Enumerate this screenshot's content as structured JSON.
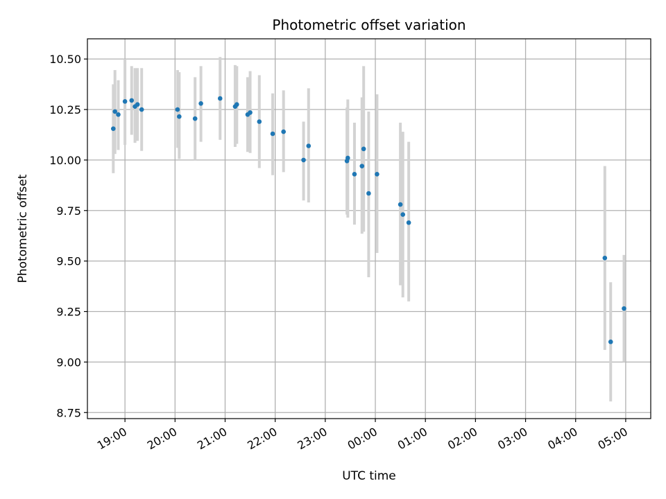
{
  "chart_data": {
    "type": "scatter",
    "title": "Photometric offset variation",
    "xlabel": "UTC time",
    "ylabel": "Photometric offset",
    "x_unit": "hours",
    "xlim": [
      "18:15",
      "05:30"
    ],
    "ylim": [
      8.72,
      10.6
    ],
    "x_ticks": [
      "19:00",
      "20:00",
      "21:00",
      "22:00",
      "23:00",
      "00:00",
      "01:00",
      "02:00",
      "03:00",
      "04:00",
      "05:00"
    ],
    "y_ticks": [
      "8.75",
      "9.00",
      "9.25",
      "9.50",
      "9.75",
      "10.00",
      "10.25",
      "10.50"
    ],
    "grid": true,
    "colors": {
      "point": "#1f77b4",
      "errorbar": "#d3d3d3",
      "grid": "#b0b0b0"
    },
    "points": [
      {
        "time": "18:46",
        "y": 10.155,
        "lo": 9.935,
        "hi": 10.375
      },
      {
        "time": "18:48",
        "y": 10.24,
        "lo": 10.03,
        "hi": 10.445
      },
      {
        "time": "18:52",
        "y": 10.225,
        "lo": 10.05,
        "hi": 10.395
      },
      {
        "time": "19:00",
        "y": 10.29,
        "lo": 10.075,
        "hi": 10.5
      },
      {
        "time": "19:08",
        "y": 10.295,
        "lo": 10.125,
        "hi": 10.465
      },
      {
        "time": "19:12",
        "y": 10.265,
        "lo": 10.085,
        "hi": 10.455
      },
      {
        "time": "19:15",
        "y": 10.275,
        "lo": 10.095,
        "hi": 10.455
      },
      {
        "time": "19:20",
        "y": 10.25,
        "lo": 10.045,
        "hi": 10.455
      },
      {
        "time": "20:03",
        "y": 10.25,
        "lo": 10.06,
        "hi": 10.445
      },
      {
        "time": "20:05",
        "y": 10.215,
        "lo": 10.005,
        "hi": 10.435
      },
      {
        "time": "20:24",
        "y": 10.205,
        "lo": 10.0,
        "hi": 10.41
      },
      {
        "time": "20:31",
        "y": 10.28,
        "lo": 10.09,
        "hi": 10.465
      },
      {
        "time": "20:54",
        "y": 10.305,
        "lo": 10.1,
        "hi": 10.51
      },
      {
        "time": "21:12",
        "y": 10.265,
        "lo": 10.065,
        "hi": 10.47
      },
      {
        "time": "21:14",
        "y": 10.275,
        "lo": 10.08,
        "hi": 10.465
      },
      {
        "time": "21:27",
        "y": 10.225,
        "lo": 10.04,
        "hi": 10.41
      },
      {
        "time": "21:30",
        "y": 10.235,
        "lo": 10.035,
        "hi": 10.44
      },
      {
        "time": "21:41",
        "y": 10.19,
        "lo": 9.96,
        "hi": 10.42
      },
      {
        "time": "21:57",
        "y": 10.13,
        "lo": 9.925,
        "hi": 10.33
      },
      {
        "time": "22:10",
        "y": 10.14,
        "lo": 9.94,
        "hi": 10.345
      },
      {
        "time": "22:34",
        "y": 10.0,
        "lo": 9.8,
        "hi": 10.19
      },
      {
        "time": "22:40",
        "y": 10.07,
        "lo": 9.79,
        "hi": 10.355
      },
      {
        "time": "23:26",
        "y": 9.995,
        "lo": 9.73,
        "hi": 10.26
      },
      {
        "time": "23:27",
        "y": 10.01,
        "lo": 9.715,
        "hi": 10.3
      },
      {
        "time": "23:35",
        "y": 9.93,
        "lo": 9.68,
        "hi": 10.185
      },
      {
        "time": "23:44",
        "y": 9.97,
        "lo": 9.635,
        "hi": 10.31
      },
      {
        "time": "23:46",
        "y": 10.055,
        "lo": 9.645,
        "hi": 10.465
      },
      {
        "time": "23:52",
        "y": 9.835,
        "lo": 9.42,
        "hi": 10.24
      },
      {
        "time": "00:02",
        "y": 9.93,
        "lo": 9.54,
        "hi": 10.325
      },
      {
        "time": "00:30",
        "y": 9.78,
        "lo": 9.38,
        "hi": 10.185
      },
      {
        "time": "00:33",
        "y": 9.73,
        "lo": 9.32,
        "hi": 10.14
      },
      {
        "time": "00:40",
        "y": 9.69,
        "lo": 9.3,
        "hi": 10.09
      },
      {
        "time": "04:35",
        "y": 9.515,
        "lo": 9.06,
        "hi": 9.97
      },
      {
        "time": "04:42",
        "y": 9.1,
        "lo": 8.805,
        "hi": 9.395
      },
      {
        "time": "04:58",
        "y": 9.265,
        "lo": 9.0,
        "hi": 9.53
      }
    ]
  }
}
